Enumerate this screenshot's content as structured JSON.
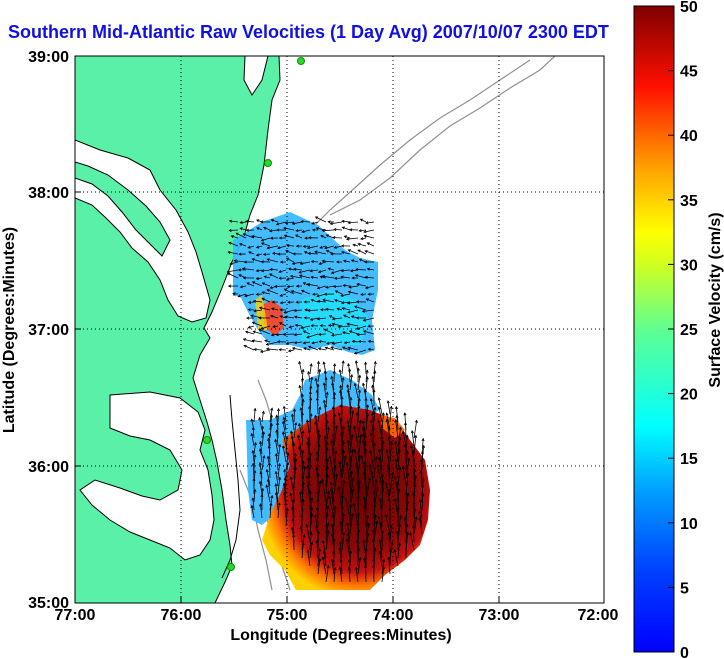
{
  "title": "Southern Mid-Atlantic Raw Velocities (1 Day Avg) 2007/10/07 2300 EDT",
  "map": {
    "xlabel": "Longitude (Degrees:Minutes)",
    "ylabel": "Latitude (Degrees:Minutes)",
    "x_ticks": [
      "77:00",
      "76:00",
      "75:00",
      "74:00",
      "73:00",
      "72:00"
    ],
    "y_ticks": [
      "39:00",
      "38:00",
      "37:00",
      "36:00",
      "35:00"
    ],
    "land_color": "#5af0a8",
    "stations": [
      "station-delaware",
      "station-wallops",
      "station-duck",
      "station-hatteras"
    ]
  },
  "colorbar": {
    "label": "Surface Velocity (cm/s)",
    "ticks": [
      "50",
      "45",
      "40",
      "35",
      "30",
      "25",
      "20",
      "15",
      "10",
      "5",
      "0"
    ],
    "range": [
      0,
      50
    ],
    "colormap": "jet"
  }
}
